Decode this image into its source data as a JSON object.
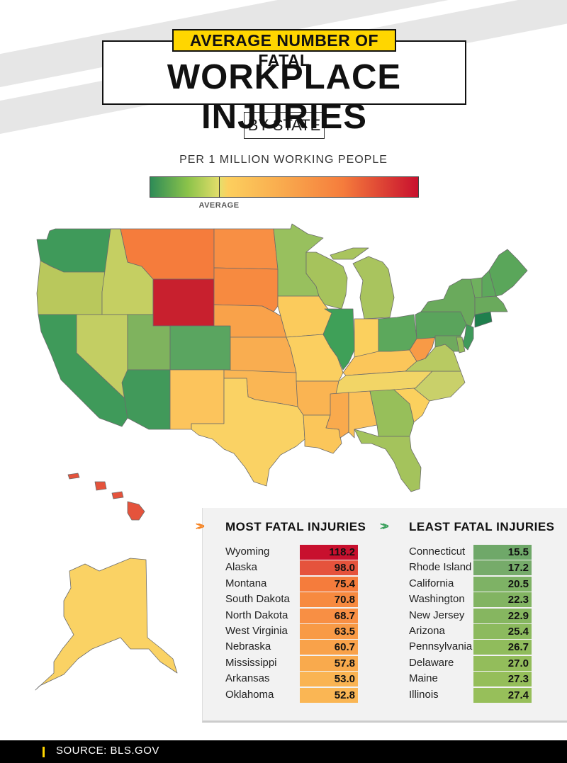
{
  "header": {
    "title_top": "AVERAGE NUMBER OF FATAL",
    "title_main": "WORKPLACE INJURIES",
    "subtitle": "BY STATE",
    "unit": "PER 1 MILLION WORKING PEOPLE"
  },
  "legend": {
    "average_label": "AVERAGE",
    "colors": [
      "#2e8b57",
      "#8bc34a",
      "#e6de6b",
      "#fccf5e",
      "#f9a94d",
      "#f57c3c",
      "#c8102e"
    ]
  },
  "most": {
    "heading": "MOST FATAL INJURIES",
    "arrow_color": "#f58220",
    "rows": [
      {
        "state": "Wyoming",
        "value": "118.2",
        "color": "#c8102e"
      },
      {
        "state": "Alaska",
        "value": "98.0",
        "color": "#e5533c"
      },
      {
        "state": "Montana",
        "value": "75.4",
        "color": "#f57c3c"
      },
      {
        "state": "South Dakota",
        "value": "70.8",
        "color": "#f78a40"
      },
      {
        "state": "North Dakota",
        "value": "68.7",
        "color": "#f88f44"
      },
      {
        "state": "West Virginia",
        "value": "63.5",
        "color": "#f89a46"
      },
      {
        "state": "Nebraska",
        "value": "60.7",
        "color": "#f9a24a"
      },
      {
        "state": "Mississippi",
        "value": "57.8",
        "color": "#f9aa4d"
      },
      {
        "state": "Arkansas",
        "value": "53.0",
        "color": "#fab452"
      },
      {
        "state": "Oklahoma",
        "value": "52.8",
        "color": "#fab654"
      }
    ]
  },
  "least": {
    "heading": "LEAST FATAL INJURIES",
    "arrow_color": "#3aa05c",
    "rows": [
      {
        "state": "Connecticut",
        "value": "15.5",
        "color": "#6fa869"
      },
      {
        "state": "Rhode Island",
        "value": "17.2",
        "color": "#76ab6a"
      },
      {
        "state": "California",
        "value": "20.5",
        "color": "#7eb265"
      },
      {
        "state": "Washington",
        "value": "22.3",
        "color": "#82b462"
      },
      {
        "state": "New Jersey",
        "value": "22.9",
        "color": "#86b660"
      },
      {
        "state": "Arizona",
        "value": "25.4",
        "color": "#8cba5e"
      },
      {
        "state": "Pennsylvania",
        "value": "26.7",
        "color": "#90bc5c"
      },
      {
        "state": "Delaware",
        "value": "27.0",
        "color": "#93bd5b"
      },
      {
        "state": "Maine",
        "value": "27.3",
        "color": "#95be5a"
      },
      {
        "state": "Illinois",
        "value": "27.4",
        "color": "#97bf5a"
      }
    ]
  },
  "states": [
    {
      "code": "WA",
      "fill": "#3f9a5a"
    },
    {
      "code": "OR",
      "fill": "#b9c85c"
    },
    {
      "code": "CA",
      "fill": "#3f9a5a"
    },
    {
      "code": "ID",
      "fill": "#c5cf62"
    },
    {
      "code": "NV",
      "fill": "#c3ce63"
    },
    {
      "code": "MT",
      "fill": "#f57c3c"
    },
    {
      "code": "WY",
      "fill": "#c8202e"
    },
    {
      "code": "UT",
      "fill": "#7fb35e"
    },
    {
      "code": "AZ",
      "fill": "#41995a"
    },
    {
      "code": "CO",
      "fill": "#5aa560"
    },
    {
      "code": "NM",
      "fill": "#fcc45c"
    },
    {
      "code": "ND",
      "fill": "#f88f44"
    },
    {
      "code": "SD",
      "fill": "#f78a40"
    },
    {
      "code": "NE",
      "fill": "#f9a24a"
    },
    {
      "code": "KS",
      "fill": "#f9ad50"
    },
    {
      "code": "OK",
      "fill": "#fab654"
    },
    {
      "code": "TX",
      "fill": "#fad264"
    },
    {
      "code": "MN",
      "fill": "#98c05e"
    },
    {
      "code": "IA",
      "fill": "#fbcb5c"
    },
    {
      "code": "MO",
      "fill": "#fbcf60"
    },
    {
      "code": "AR",
      "fill": "#fab452"
    },
    {
      "code": "LA",
      "fill": "#fbc65a"
    },
    {
      "code": "WI",
      "fill": "#a6c35c"
    },
    {
      "code": "IL",
      "fill": "#3fa058"
    },
    {
      "code": "MI",
      "fill": "#a9c45e"
    },
    {
      "code": "IN",
      "fill": "#fbd05e"
    },
    {
      "code": "OH",
      "fill": "#5ca85c"
    },
    {
      "code": "KY",
      "fill": "#fbc65a"
    },
    {
      "code": "TN",
      "fill": "#f2d566"
    },
    {
      "code": "MS",
      "fill": "#f9aa4d"
    },
    {
      "code": "AL",
      "fill": "#fbc15a"
    },
    {
      "code": "GA",
      "fill": "#97bf5a"
    },
    {
      "code": "FL",
      "fill": "#a4c35c"
    },
    {
      "code": "SC",
      "fill": "#fbd05e"
    },
    {
      "code": "NC",
      "fill": "#c9d06a"
    },
    {
      "code": "VA",
      "fill": "#b8ca62"
    },
    {
      "code": "WV",
      "fill": "#f89a46"
    },
    {
      "code": "PA",
      "fill": "#5aa45c"
    },
    {
      "code": "NY",
      "fill": "#6aaa5c"
    },
    {
      "code": "NJ",
      "fill": "#3f9a5a"
    },
    {
      "code": "MD",
      "fill": "#6faa5e"
    },
    {
      "code": "DE",
      "fill": "#93bd5b"
    },
    {
      "code": "CT",
      "fill": "#1f7f4d"
    },
    {
      "code": "VT",
      "fill": "#6fb05e"
    },
    {
      "code": "NH",
      "fill": "#5da85c"
    },
    {
      "code": "ME",
      "fill": "#5aa65a"
    },
    {
      "code": "MA",
      "fill": "#6aaa5c"
    },
    {
      "code": "AK",
      "fill": "#fad264"
    },
    {
      "code": "HI",
      "fill": "#e5533c"
    }
  ],
  "footer": {
    "source": "SOURCE: BLS.GOV"
  }
}
